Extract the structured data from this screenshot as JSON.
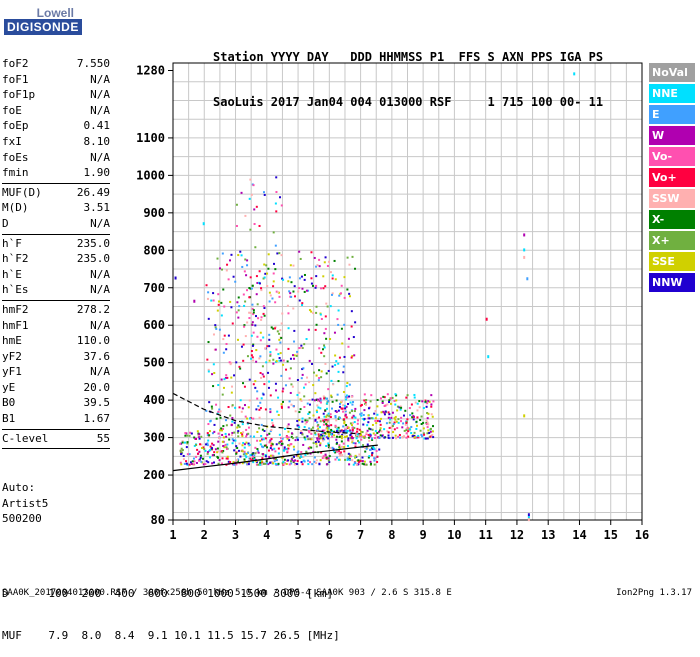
{
  "logo": {
    "line1": "Lowell",
    "line2": "DIGISONDE"
  },
  "header": {
    "line1": "Station YYYY DAY   DDD HHMMSS P1  FFS S AXN PPS IGA PS",
    "line2": "SaoLuis 2017 Jan04 004 013000 RSF     1 715 100 00- 11"
  },
  "params": [
    {
      "k": "foF2",
      "v": "7.550"
    },
    {
      "k": "foF1",
      "v": "N/A"
    },
    {
      "k": "foF1p",
      "v": "N/A"
    },
    {
      "k": "foE",
      "v": "N/A"
    },
    {
      "k": "foEp",
      "v": "0.41"
    },
    {
      "k": "fxI",
      "v": "8.10"
    },
    {
      "k": "foEs",
      "v": "N/A"
    },
    {
      "k": "fmin",
      "v": "1.90"
    },
    {
      "sep": true
    },
    {
      "k": "MUF(D)",
      "v": "26.49"
    },
    {
      "k": "M(D)",
      "v": "3.51"
    },
    {
      "k": "D",
      "v": "N/A"
    },
    {
      "sep": true
    },
    {
      "k": "h`F",
      "v": "235.0"
    },
    {
      "k": "h`F2",
      "v": "235.0"
    },
    {
      "k": "h`E",
      "v": "N/A"
    },
    {
      "k": "h`Es",
      "v": "N/A"
    },
    {
      "sep": true
    },
    {
      "k": "hmF2",
      "v": "278.2"
    },
    {
      "k": "hmF1",
      "v": "N/A"
    },
    {
      "k": "hmE",
      "v": "110.0"
    },
    {
      "k": "yF2",
      "v": "37.6"
    },
    {
      "k": "yF1",
      "v": "N/A"
    },
    {
      "k": "yE",
      "v": "20.0"
    },
    {
      "k": "B0",
      "v": "39.5"
    },
    {
      "k": "B1",
      "v": "1.67"
    },
    {
      "sep": true
    },
    {
      "k": "C-level",
      "v": "55"
    },
    {
      "sep": true
    }
  ],
  "auto": {
    "l1": "Auto:",
    "l2": "Artist5",
    "l3": "500200"
  },
  "legend": [
    {
      "label": "NoVal",
      "color": "#a0a0a0"
    },
    {
      "label": "NNE",
      "color": "#00e0ff"
    },
    {
      "label": "E",
      "color": "#40a0ff"
    },
    {
      "label": "W",
      "color": "#b000b0"
    },
    {
      "label": "Vo-",
      "color": "#ff50b0"
    },
    {
      "label": "Vo+",
      "color": "#ff0040"
    },
    {
      "label": "SSW",
      "color": "#ffb0b0"
    },
    {
      "label": "X-",
      "color": "#008000"
    },
    {
      "label": "X+",
      "color": "#70b040"
    },
    {
      "label": "SSE",
      "color": "#d0d000"
    },
    {
      "label": "NNW",
      "color": "#2000d0"
    }
  ],
  "bottom": {
    "d_line": "D      100  200  400  600  800 1000 1500 3000 [km]",
    "muf_line": "MUF    7.9  8.0  8.4  9.1 10.1 11.5 15.7 26.5 [MHz]"
  },
  "footer": "SAA0K_2017004013000.RSF / 300fx256h 50 kHz 5.0 km / DPS-4 SAA0K 903 / 2.6 S 315.8 E",
  "version": "Ion2Png 1.3.17",
  "chart_data": {
    "type": "scatter",
    "xlabel": "",
    "ylabel": "",
    "xlim": [
      1,
      16
    ],
    "ylim": [
      80,
      1300
    ],
    "x_ticks": [
      1,
      2,
      3,
      4,
      5,
      6,
      7,
      8,
      9,
      10,
      11,
      12,
      13,
      14,
      15,
      16
    ],
    "y_ticks": [
      80,
      200,
      300,
      400,
      500,
      600,
      700,
      800,
      900,
      1000,
      1100,
      1280
    ],
    "grid": true,
    "x_data_max": 9.3,
    "profile_curve": {
      "x": [
        1.0,
        2.0,
        3.0,
        4.0,
        5.0,
        6.0,
        7.0,
        7.55
      ],
      "y": [
        212,
        222,
        232,
        243,
        255,
        265,
        275,
        280
      ]
    },
    "profile_dashed": {
      "x": [
        1.0,
        2.0,
        3.0,
        4.0,
        5.0,
        6.0,
        7.0
      ],
      "y": [
        418,
        375,
        345,
        330,
        322,
        315,
        310
      ]
    },
    "echo_bands": [
      {
        "x0": 1.2,
        "x1": 7.6,
        "y0": 230,
        "y1": 320,
        "density": 0.55
      },
      {
        "x0": 5.5,
        "x1": 9.3,
        "y0": 300,
        "y1": 420,
        "density": 0.45
      },
      {
        "x0": 2.0,
        "x1": 6.8,
        "y0": 320,
        "y1": 800,
        "density": 0.12
      },
      {
        "x0": 3.0,
        "x1": 4.5,
        "y0": 500,
        "y1": 1000,
        "density": 0.06
      }
    ],
    "sparse_points": [
      {
        "x": 13.8,
        "y": 1275,
        "color": "#00e0ff"
      },
      {
        "x": 12.2,
        "y": 845,
        "color": "#b000b0"
      },
      {
        "x": 12.2,
        "y": 805,
        "color": "#00e0ff"
      },
      {
        "x": 12.2,
        "y": 785,
        "color": "#ffb0b0"
      },
      {
        "x": 12.3,
        "y": 728,
        "color": "#40a0ff"
      },
      {
        "x": 11.0,
        "y": 620,
        "color": "#ff0040"
      },
      {
        "x": 11.05,
        "y": 520,
        "color": "#00e0ff"
      },
      {
        "x": 12.2,
        "y": 362,
        "color": "#d0d000"
      },
      {
        "x": 12.35,
        "y": 98,
        "color": "#2000d0"
      },
      {
        "x": 12.35,
        "y": 90,
        "color": "#00e0ff"
      },
      {
        "x": 12.35,
        "y": 85,
        "color": "#ffb0b0"
      },
      {
        "x": 1.05,
        "y": 730,
        "color": "#2000d0"
      },
      {
        "x": 1.95,
        "y": 875,
        "color": "#00e0ff"
      },
      {
        "x": 1.65,
        "y": 668,
        "color": "#b000b0"
      }
    ]
  }
}
